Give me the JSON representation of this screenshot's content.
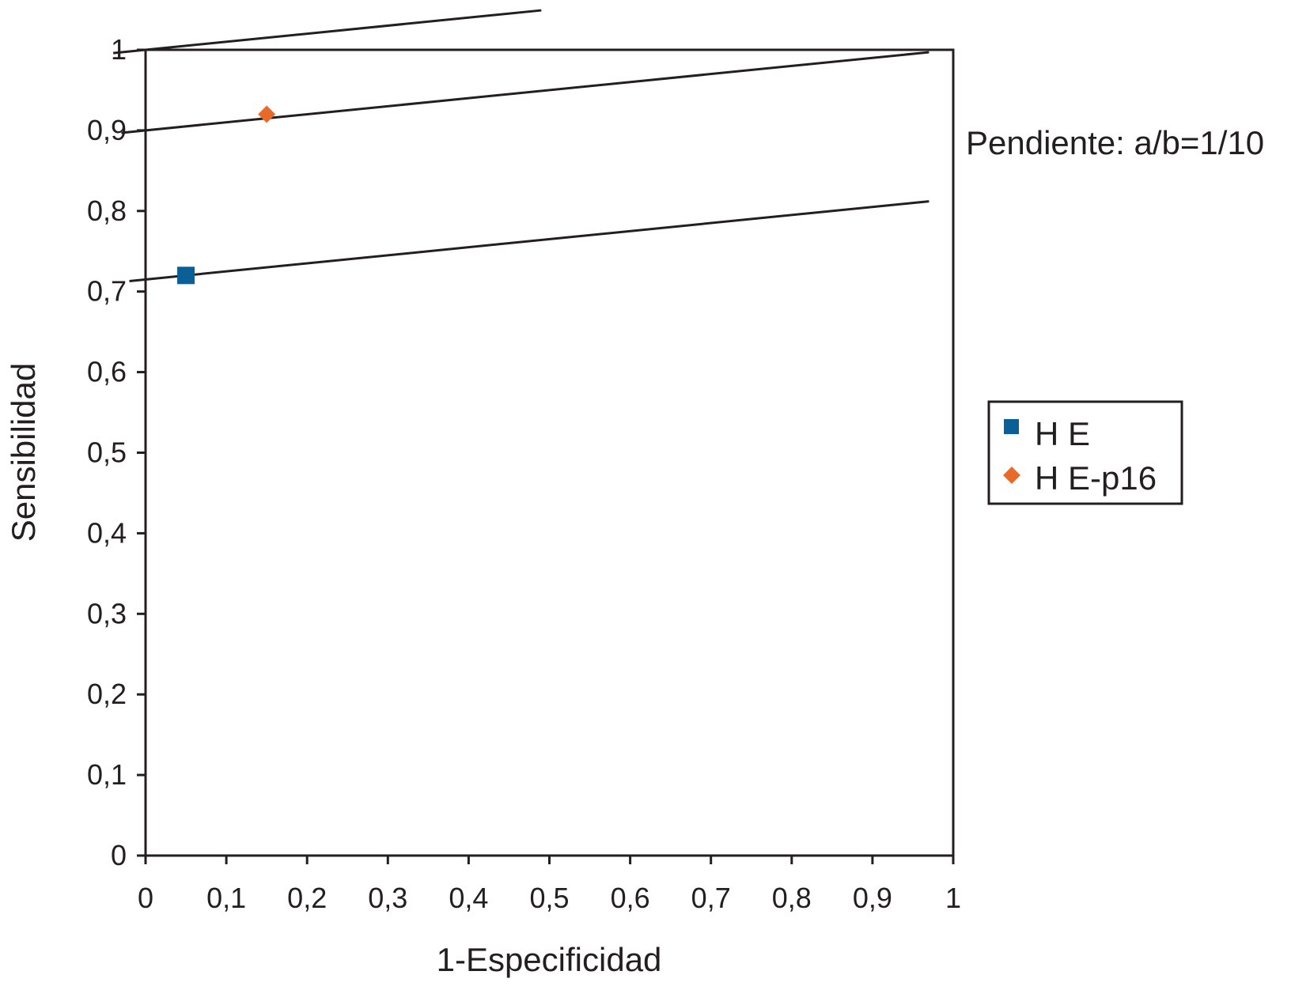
{
  "chart_data": {
    "type": "scatter",
    "title": "",
    "xlabel": "1-Especificidad",
    "ylabel": "Sensibilidad",
    "xlim": [
      0,
      1
    ],
    "ylim": [
      0,
      1
    ],
    "x_ticks": [
      0,
      0.1,
      0.2,
      0.3,
      0.4,
      0.5,
      0.6,
      0.7,
      0.8,
      0.9,
      1
    ],
    "x_tick_labels": [
      "0",
      "0,1",
      "0,2",
      "0,3",
      "0,4",
      "0,5",
      "0,6",
      "0,7",
      "0,8",
      "0,9",
      "1"
    ],
    "y_ticks": [
      0,
      0.1,
      0.2,
      0.3,
      0.4,
      0.5,
      0.6,
      0.7,
      0.8,
      0.9,
      1
    ],
    "y_tick_labels": [
      "0",
      "0,1",
      "0,2",
      "0,3",
      "0,4",
      "0,5",
      "0,6",
      "0,7",
      "0,8",
      "0,9",
      "1"
    ],
    "grid": false,
    "legend_position": "right",
    "annotation": "Pendiente: a/b=1/10",
    "series": [
      {
        "name": "H E",
        "marker": "square",
        "color": "#0b5f97",
        "points": [
          {
            "x": 0.05,
            "y": 0.72
          }
        ]
      },
      {
        "name": "H E-p16",
        "marker": "diamond",
        "color": "#e86a28",
        "points": [
          {
            "x": 0.15,
            "y": 0.92
          }
        ]
      }
    ],
    "reference_lines": [
      {
        "slope": 0.1,
        "intercept": 0.715,
        "x_from": -0.02,
        "x_to": 0.97
      },
      {
        "slope": 0.1,
        "intercept": 0.9,
        "x_from": -0.03,
        "x_to": 0.97
      },
      {
        "slope": 0.1,
        "intercept": 1.0,
        "x_from": -0.04,
        "x_to": 0.49
      }
    ]
  }
}
